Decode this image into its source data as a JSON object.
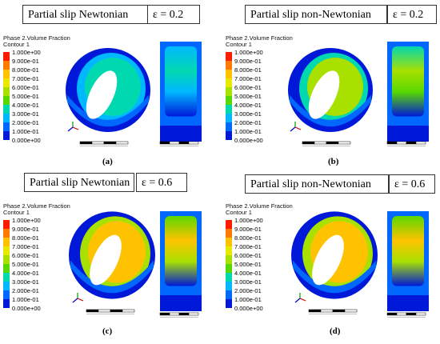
{
  "colors": [
    "#ff1a00",
    "#ff7a00",
    "#ffc200",
    "#e8e800",
    "#a8e000",
    "#58d800",
    "#00d8b0",
    "#00b8ff",
    "#0068ff",
    "#0018d8"
  ],
  "legend": {
    "title_line1": "Phase 2.Volume Fraction",
    "title_line2": "Contour 1",
    "values": [
      "1.000e+00",
      "9.000e-01",
      "8.000e-01",
      "7.000e-01",
      "6.000e-01",
      "5.000e-01",
      "4.000e-01",
      "3.000e-01",
      "2.000e-01",
      "1.000e-01",
      "0.000e+00"
    ]
  },
  "panels": [
    {
      "title": "Partial slip Newtonian",
      "eps": "ε = 0.2",
      "caption": "(a)",
      "fill_level": 0.3
    },
    {
      "title": "Partial slip non-Newtonian",
      "eps": "ε = 0.2",
      "caption": "(b)",
      "fill_level": 0.55
    },
    {
      "title": "Partial slip Newtonian",
      "eps": "ε = 0.6",
      "caption": "(c)",
      "fill_level": 0.75
    },
    {
      "title": "Partial slip non-Newtonian",
      "eps": "ε = 0.6",
      "caption": "(d)",
      "fill_level": 0.8
    }
  ]
}
